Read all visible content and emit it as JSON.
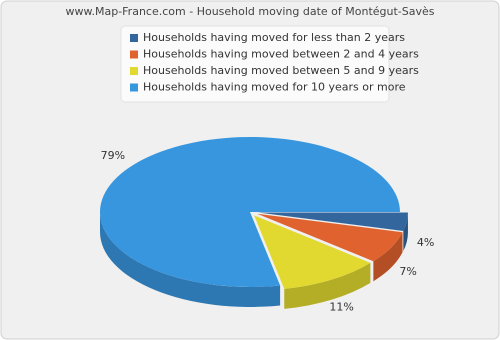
{
  "chart_data": {
    "type": "pie",
    "title": "www.Map-France.com - Household moving date of Montégut-Savès",
    "categories": [
      "Households having moved for less than 2 years",
      "Households having moved between 2 and 4 years",
      "Households having moved between 5 and 9 years",
      "Households having moved for 10 years or more"
    ],
    "values": [
      4,
      7,
      11,
      79
    ],
    "value_labels": [
      "4%",
      "7%",
      "11%",
      "79%"
    ],
    "colors": [
      "#33669c",
      "#e0622e",
      "#e1d830",
      "#3896df"
    ]
  }
}
